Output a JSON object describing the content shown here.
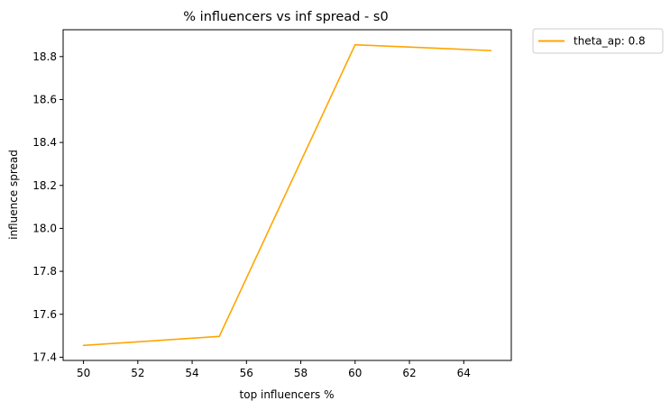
{
  "chart_data": {
    "type": "line",
    "title": "% influencers vs inf spread - s0",
    "xlabel": "top influencers %",
    "ylabel": "influence spread",
    "xlim": [
      49.25,
      65.75
    ],
    "ylim": [
      17.385,
      18.925
    ],
    "xticks": [
      50,
      52,
      54,
      56,
      58,
      60,
      62,
      64
    ],
    "yticks": [
      17.4,
      17.6,
      17.8,
      18.0,
      18.2,
      18.4,
      18.6,
      18.8
    ],
    "ytick_labels": [
      "17.4",
      "17.6",
      "17.8",
      "18.0",
      "18.2",
      "18.4",
      "18.6",
      "18.8"
    ],
    "grid": false,
    "legend_position": "outside-top-right",
    "series": [
      {
        "name": "theta_ap: 0.8",
        "color": "#ffa500",
        "x": [
          50,
          55,
          60,
          65
        ],
        "y": [
          17.455,
          17.497,
          18.855,
          18.828
        ]
      }
    ]
  }
}
